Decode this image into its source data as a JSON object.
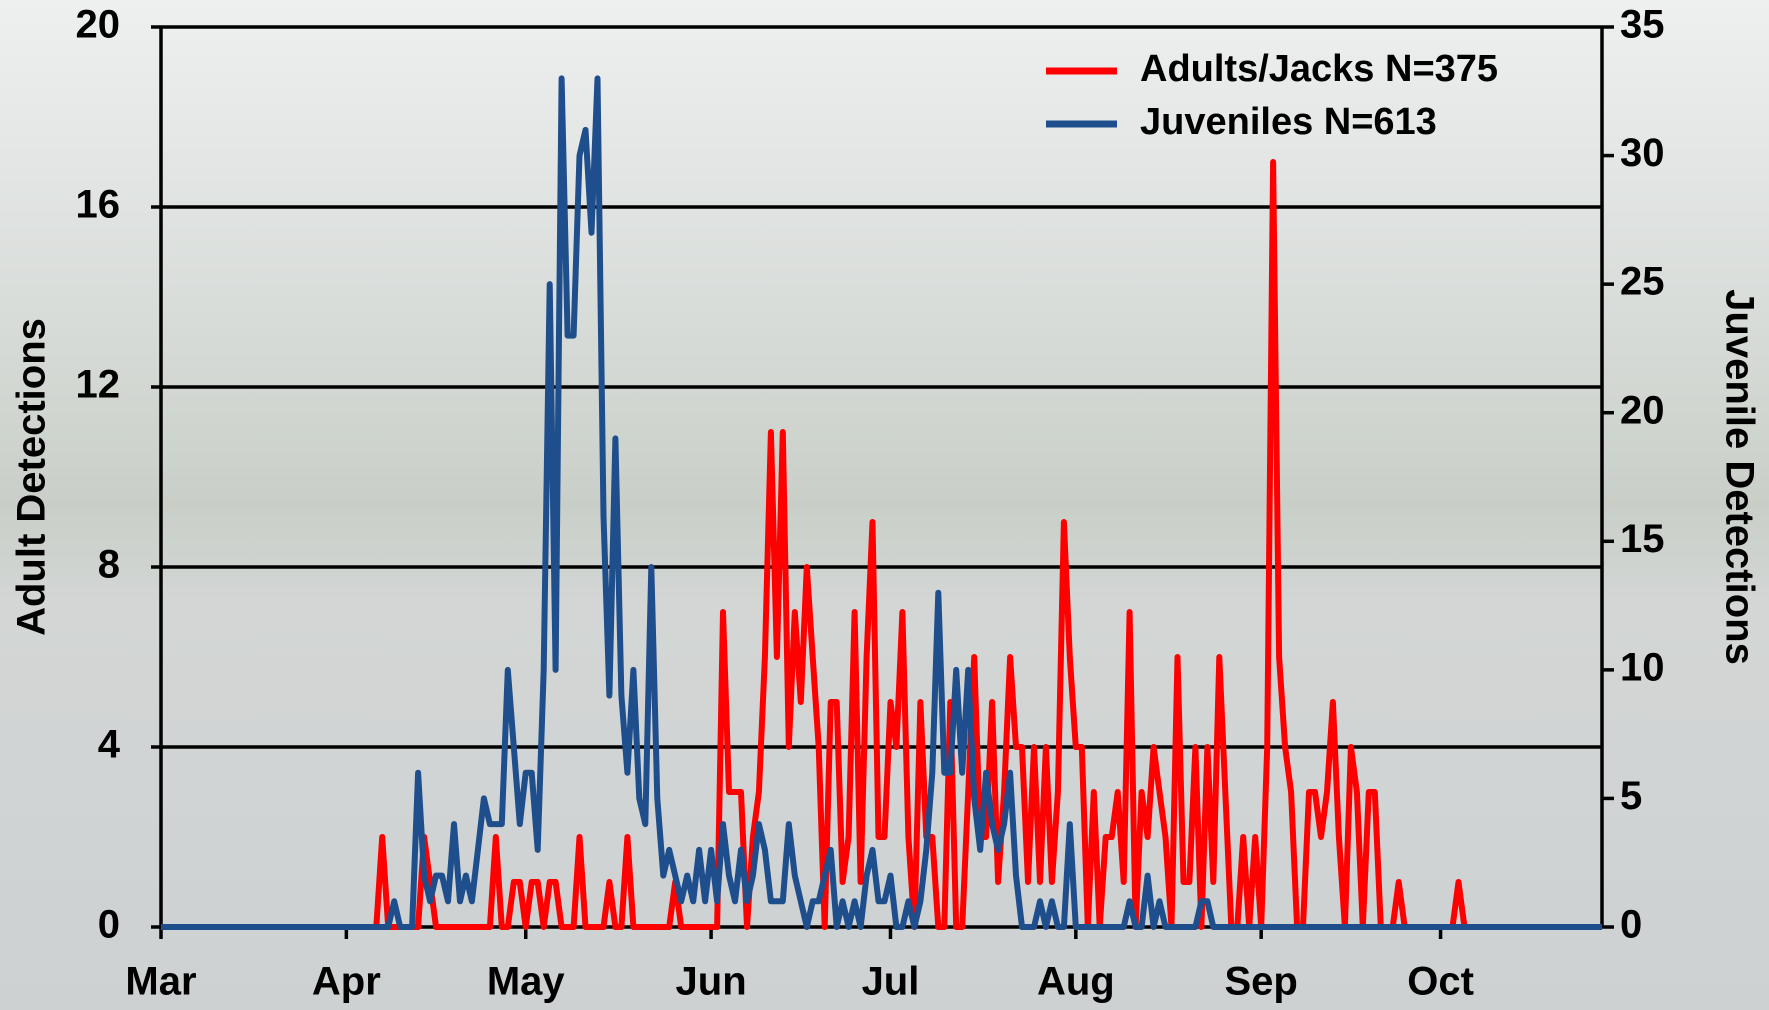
{
  "chart_data": {
    "type": "line",
    "y_label": "Adult Detections",
    "y2_label": "Juvenile Detections",
    "x": [
      0,
      1,
      2,
      3,
      4,
      5,
      6,
      7,
      8,
      9,
      10,
      11,
      12,
      13,
      14,
      15,
      16,
      17,
      18,
      19,
      20,
      21,
      22,
      23,
      24,
      25,
      26,
      27,
      28,
      29,
      30,
      31,
      32,
      33,
      34,
      35,
      36,
      37,
      38,
      39,
      40,
      41,
      42,
      43,
      44,
      45,
      46,
      47,
      48,
      49,
      50,
      51,
      52,
      53,
      54,
      55,
      56,
      57,
      58,
      59,
      60,
      61,
      62,
      63,
      64,
      65,
      66,
      67,
      68,
      69,
      70,
      71,
      72,
      73,
      74,
      75,
      76,
      77,
      78,
      79,
      80,
      81,
      82,
      83,
      84,
      85,
      86,
      87,
      88,
      89,
      90,
      91,
      92,
      93,
      94,
      95,
      96,
      97,
      98,
      99,
      100,
      101,
      102,
      103,
      104,
      105,
      106,
      107,
      108,
      109,
      110,
      111,
      112,
      113,
      114,
      115,
      116,
      117,
      118,
      119,
      120,
      121,
      122,
      123,
      124,
      125,
      126,
      127,
      128,
      129,
      130,
      131,
      132,
      133,
      134,
      135,
      136,
      137,
      138,
      139,
      140,
      141,
      142,
      143,
      144,
      145,
      146,
      147,
      148,
      149,
      150,
      151,
      152,
      153,
      154,
      155,
      156,
      157,
      158,
      159,
      160,
      161,
      162,
      163,
      164,
      165,
      166,
      167,
      168,
      169,
      170,
      171,
      172,
      173,
      174,
      175,
      176,
      177,
      178,
      179,
      180,
      181,
      182,
      183,
      184,
      185,
      186,
      187,
      188,
      189,
      190,
      191,
      192,
      193,
      194,
      195,
      196,
      197,
      198,
      199,
      200,
      201,
      202,
      203,
      204,
      205,
      206,
      207,
      208,
      209,
      210,
      211,
      212,
      213,
      214,
      215,
      216,
      217,
      218,
      219,
      220,
      221,
      222,
      223,
      224,
      225,
      226,
      227,
      228,
      229,
      230,
      231,
      232,
      233,
      234,
      235,
      236,
      237,
      238,
      239,
      240,
      241
    ],
    "series": [
      {
        "name": "Adults/Jacks N=375",
        "color": "#ff0000",
        "axis": "y",
        "values": [
          0,
          0,
          0,
          0,
          0,
          0,
          0,
          0,
          0,
          0,
          0,
          0,
          0,
          0,
          0,
          0,
          0,
          0,
          0,
          0,
          0,
          0,
          0,
          0,
          0,
          0,
          0,
          0,
          0,
          0,
          0,
          0,
          0,
          0,
          0,
          0,
          0,
          2,
          0,
          0,
          0,
          0,
          0,
          0,
          2,
          1,
          0,
          0,
          0,
          0,
          0,
          0,
          0,
          0,
          0,
          0,
          2,
          0,
          0,
          1,
          1,
          0,
          1,
          1,
          0,
          1,
          1,
          0,
          0,
          0,
          2,
          0,
          0,
          0,
          0,
          1,
          0,
          0,
          2,
          0,
          0,
          0,
          0,
          0,
          0,
          0,
          1,
          0,
          0,
          0,
          0,
          0,
          0,
          0,
          7,
          3,
          3,
          3,
          0,
          2,
          3,
          6,
          11,
          6,
          11,
          4,
          7,
          5,
          8,
          6,
          4,
          0,
          5,
          5,
          1,
          2,
          7,
          1,
          6,
          9,
          2,
          2,
          5,
          4,
          7,
          2,
          0,
          5,
          2,
          2,
          0,
          0,
          5,
          0,
          0,
          3,
          6,
          2,
          2,
          5,
          1,
          3,
          6,
          4,
          4,
          1,
          4,
          1,
          4,
          1,
          3,
          9,
          6,
          4,
          4,
          0,
          3,
          0,
          2,
          2,
          3,
          1,
          7,
          0,
          3,
          2,
          4,
          3,
          2,
          0,
          6,
          1,
          1,
          4,
          0,
          4,
          1,
          6,
          3,
          0,
          0,
          2,
          0,
          2,
          0,
          4,
          17,
          6,
          4,
          3,
          0,
          0,
          3,
          3,
          2,
          3,
          5,
          2,
          0,
          4,
          3,
          0,
          3,
          3,
          0,
          0,
          0,
          1,
          0,
          0,
          0,
          0,
          0,
          0,
          0,
          0,
          0,
          1,
          0,
          0,
          0,
          0,
          0,
          0,
          0,
          0,
          0,
          0,
          0,
          0,
          0,
          0,
          0,
          0,
          0,
          0,
          0,
          0,
          0,
          0,
          0,
          0
        ]
      },
      {
        "name": "Juveniles N=613",
        "color": "#1f4e8c",
        "axis": "y2",
        "values": [
          0,
          0,
          0,
          0,
          0,
          0,
          0,
          0,
          0,
          0,
          0,
          0,
          0,
          0,
          0,
          0,
          0,
          0,
          0,
          0,
          0,
          0,
          0,
          0,
          0,
          0,
          0,
          0,
          0,
          0,
          0,
          0,
          0,
          0,
          0,
          0,
          0,
          0,
          0,
          1,
          0,
          0,
          0,
          6,
          2,
          1,
          2,
          2,
          1,
          4,
          1,
          2,
          1,
          3,
          5,
          4,
          4,
          4,
          10,
          7,
          4,
          6,
          6,
          3,
          10,
          25,
          10,
          33,
          23,
          23,
          30,
          31,
          27,
          33,
          16,
          9,
          19,
          9,
          6,
          10,
          5,
          4,
          14,
          5,
          2,
          3,
          2,
          1,
          2,
          1,
          3,
          1,
          3,
          1,
          4,
          2,
          1,
          3,
          1,
          2,
          4,
          3,
          1,
          1,
          1,
          4,
          2,
          1,
          0,
          1,
          1,
          2,
          3,
          0,
          1,
          0,
          1,
          0,
          2,
          3,
          1,
          1,
          2,
          0,
          0,
          1,
          0,
          1,
          3,
          6,
          13,
          6,
          6,
          10,
          6,
          10,
          5,
          3,
          6,
          4,
          3,
          4,
          6,
          2,
          0,
          0,
          0,
          1,
          0,
          1,
          0,
          0,
          4,
          0,
          0,
          0,
          0,
          0,
          0,
          0,
          0,
          0,
          1,
          0,
          0,
          2,
          0,
          1,
          0,
          0,
          0,
          0,
          0,
          0,
          1,
          1,
          0,
          0,
          0,
          0,
          0,
          0,
          0,
          0,
          0,
          0,
          0,
          0,
          0,
          0,
          0,
          0,
          0,
          0,
          0,
          0,
          0,
          0,
          0,
          0,
          0,
          0,
          0,
          0,
          0,
          0,
          0,
          0,
          0,
          0,
          0,
          0,
          0,
          0,
          0,
          0,
          0,
          0,
          0,
          0,
          0,
          0,
          0,
          0,
          0,
          0,
          0,
          0,
          0,
          0,
          0,
          0,
          0,
          0,
          0,
          0,
          0,
          0,
          0,
          0,
          0,
          0
        ]
      }
    ],
    "xlim": [
      0,
      241
    ],
    "xticks": [
      {
        "value": 0,
        "label": "Mar"
      },
      {
        "value": 31,
        "label": "Apr"
      },
      {
        "value": 61,
        "label": "May"
      },
      {
        "value": 92,
        "label": "Jun"
      },
      {
        "value": 122,
        "label": "Jul"
      },
      {
        "value": 153,
        "label": "Aug"
      },
      {
        "value": 184,
        "label": "Sep"
      },
      {
        "value": 214,
        "label": "Oct"
      }
    ],
    "ylim": [
      0,
      20
    ],
    "yticks": [
      0,
      4,
      8,
      12,
      16,
      20
    ],
    "y2lim": [
      0,
      35
    ],
    "y2ticks": [
      0,
      5,
      10,
      15,
      20,
      25,
      30,
      35
    ],
    "grid": true,
    "legend": "upper right"
  }
}
